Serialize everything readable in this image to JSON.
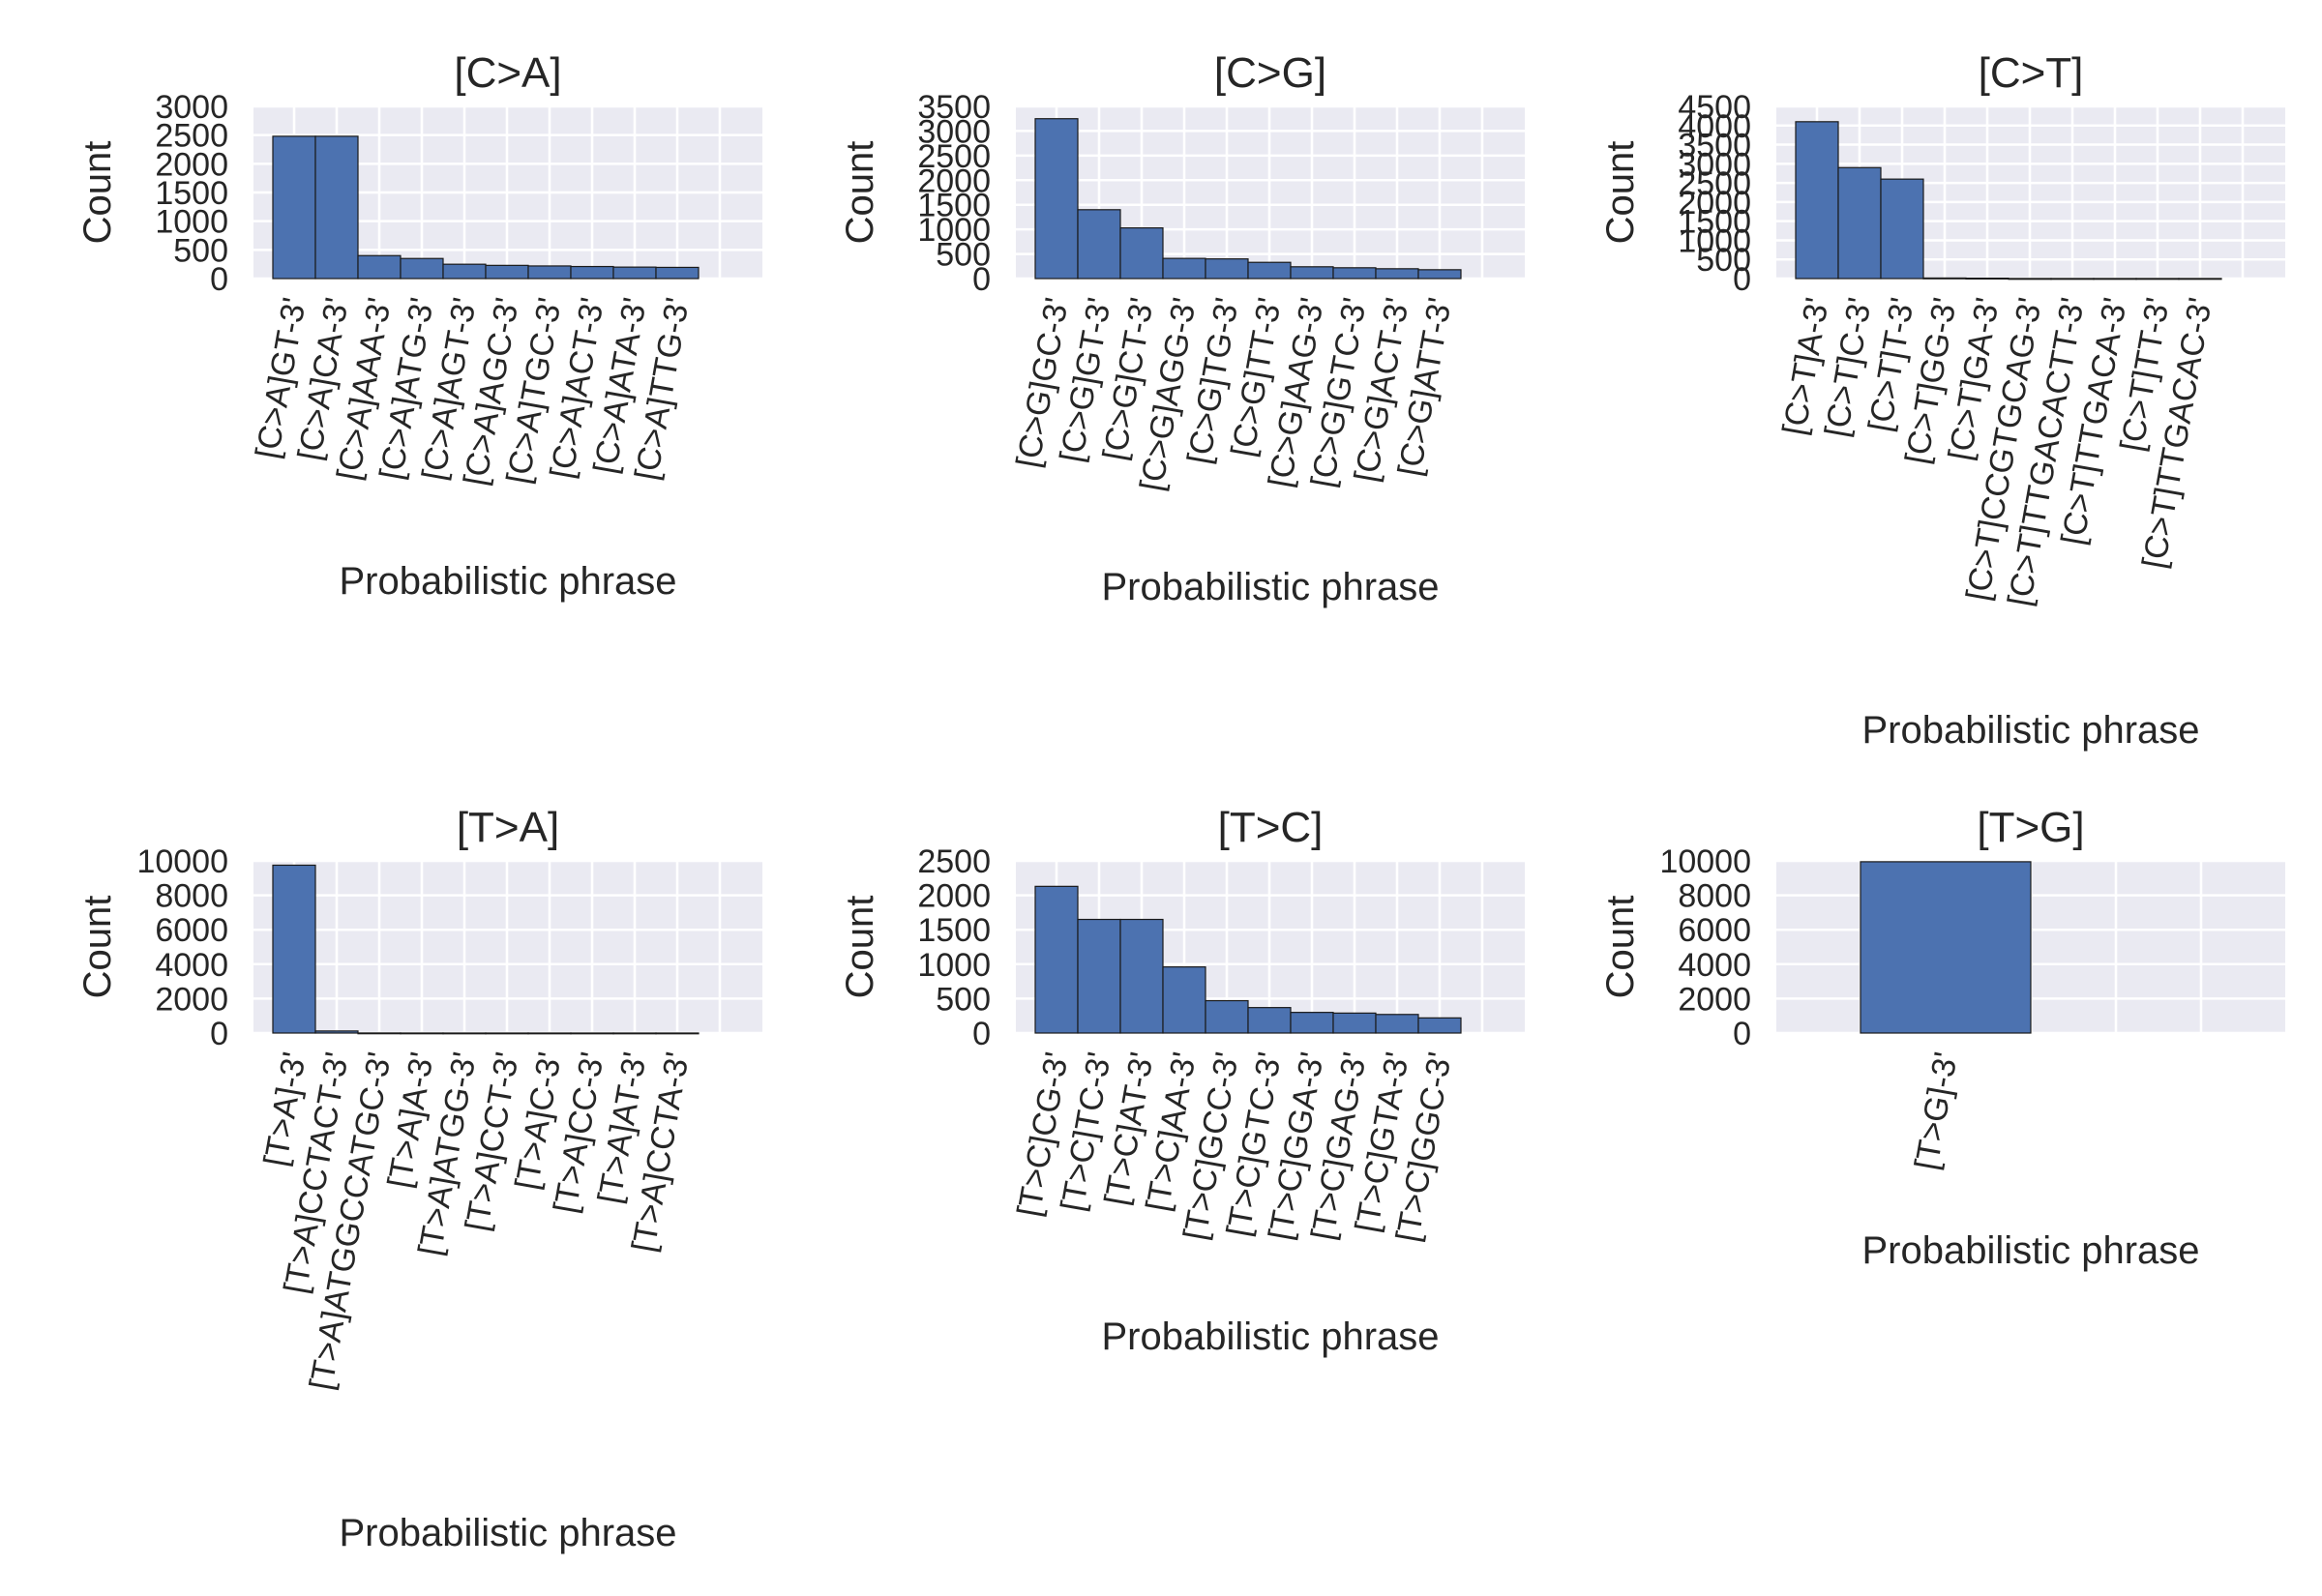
{
  "chart_data": [
    {
      "type": "bar",
      "title": "[C>A]",
      "xlabel": "Probabilistic phrase",
      "ylabel": "Count",
      "ylim": [
        0,
        3000
      ],
      "yticks": [
        0,
        500,
        1000,
        1500,
        2000,
        2500,
        3000
      ],
      "categories": [
        "[C>A]GT-3'",
        "[C>A]CA-3'",
        "[C>A]AAA-3'",
        "[C>A]ATG-3'",
        "[C>A]AGT-3'",
        "[C>A]AGC-3'",
        "[C>A]TGC-3'",
        "[C>A]ACT-3'",
        "[C>A]ATA-3'",
        "[C>A]TTG-3'"
      ],
      "values": [
        2480,
        2480,
        400,
        350,
        250,
        230,
        220,
        210,
        200,
        195
      ],
      "grid": true
    },
    {
      "type": "bar",
      "title": "[C>G]",
      "xlabel": "Probabilistic phrase",
      "ylabel": "Count",
      "ylim": [
        0,
        3500
      ],
      "yticks": [
        0,
        500,
        1000,
        1500,
        2000,
        2500,
        3000,
        3500
      ],
      "categories": [
        "[C>G]GC-3'",
        "[C>G]GT-3'",
        "[C>G]CT-3'",
        "[C>G]AGG-3'",
        "[C>G]TG-3'",
        "[C>G]TT-3'",
        "[C>G]AAG-3'",
        "[C>G]GTC-3'",
        "[C>G]ACT-3'",
        "[C>G]ATT-3'"
      ],
      "values": [
        3250,
        1400,
        1030,
        410,
        400,
        330,
        240,
        220,
        200,
        180
      ],
      "grid": true
    },
    {
      "type": "bar",
      "title": "[C>T]",
      "xlabel": "Probabilistic phrase",
      "ylabel": "Count",
      "ylim": [
        0,
        4500
      ],
      "yticks": [
        0,
        500,
        1000,
        1500,
        2000,
        2500,
        3000,
        3500,
        4000,
        4500
      ],
      "categories": [
        "[C>T]A-3'",
        "[C>T]C-3'",
        "[C>T]T-3'",
        "[C>T]GG-3'",
        "[C>T]GA-3'",
        "[C>T]CCGTGCAG-3'",
        "[C>T]TTGACACTT-3'",
        "[C>T]TTGACA-3'",
        "[C>T]TT-3'",
        "[C>T]TTGACAC-3'"
      ],
      "values": [
        4100,
        2900,
        2600,
        15,
        10,
        2,
        2,
        2,
        2,
        2
      ],
      "grid": true
    },
    {
      "type": "bar",
      "title": "[T>A]",
      "xlabel": "Probabilistic phrase",
      "ylabel": "Count",
      "ylim": [
        0,
        10000
      ],
      "yticks": [
        0,
        2000,
        4000,
        6000,
        8000,
        10000
      ],
      "categories": [
        "[T>A]-3'",
        "[T>A]CCTACT-3'",
        "[T>A]ATGGCCATGC-3'",
        "[T>A]A-3'",
        "[T>A]ATGG-3'",
        "[T>A]CCT-3'",
        "[T>A]C-3'",
        "[T>A]CC-3'",
        "[T>A]AT-3'",
        "[T>A]CCTA-3'"
      ],
      "values": [
        9750,
        120,
        5,
        3,
        2,
        2,
        2,
        2,
        2,
        2
      ],
      "grid": true
    },
    {
      "type": "bar",
      "title": "[T>C]",
      "xlabel": "Probabilistic phrase",
      "ylabel": "Count",
      "ylim": [
        0,
        2500
      ],
      "yticks": [
        0,
        500,
        1000,
        1500,
        2000,
        2500
      ],
      "categories": [
        "[T>C]CG-3'",
        "[T>C]TC-3'",
        "[T>C]AT-3'",
        "[T>C]AA-3'",
        "[T>C]GCC-3'",
        "[T>C]GTC-3'",
        "[T>C]GGA-3'",
        "[T>C]GAG-3'",
        "[T>C]GTA-3'",
        "[T>C]GGC-3'"
      ],
      "values": [
        2130,
        1650,
        1650,
        960,
        470,
        370,
        300,
        290,
        270,
        220
      ],
      "grid": true
    },
    {
      "type": "bar",
      "title": "[T>G]",
      "xlabel": "Probabilistic phrase",
      "ylabel": "Count",
      "ylim": [
        0,
        10000
      ],
      "yticks": [
        0,
        2000,
        4000,
        6000,
        8000,
        10000
      ],
      "categories": [
        "[T>G]-3'"
      ],
      "values": [
        9950
      ],
      "grid": true
    }
  ],
  "colors": {
    "bar": "#4c72b0",
    "bar_edge": "#1a1a1a",
    "plot_background": "#eaeaf2",
    "grid": "#ffffff",
    "text": "#262626"
  }
}
